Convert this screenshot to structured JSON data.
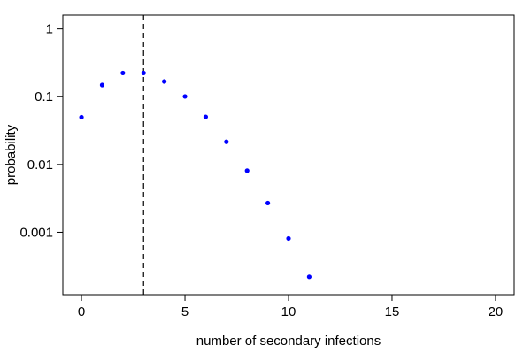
{
  "chart_data": {
    "type": "scatter",
    "xlabel": "number of secondary infections",
    "ylabel": "probability",
    "xlim": [
      -0.9,
      20.9
    ],
    "ylim": [
      0.00012,
      1.6
    ],
    "yscale": "log",
    "x_ticks": [
      0,
      5,
      10,
      15,
      20
    ],
    "x_tick_labels": [
      "0",
      "5",
      "10",
      "15",
      "20"
    ],
    "y_ticks": [
      0.001,
      0.01,
      0.1,
      1
    ],
    "y_tick_labels": [
      "0.001",
      "0.01",
      "0.1",
      "1"
    ],
    "series": [
      {
        "color": "#0000ff",
        "x": [
          0,
          1,
          2,
          3,
          4,
          5,
          6,
          7,
          8,
          9,
          10,
          11
        ],
        "y": [
          0.0498,
          0.149,
          0.224,
          0.224,
          0.168,
          0.101,
          0.0504,
          0.0216,
          0.0081,
          0.0027,
          0.00081,
          0.00022
        ]
      }
    ],
    "reference_line": {
      "x": 3,
      "style": "dashed",
      "color": "#000000"
    },
    "grid": false,
    "legend": "none"
  }
}
